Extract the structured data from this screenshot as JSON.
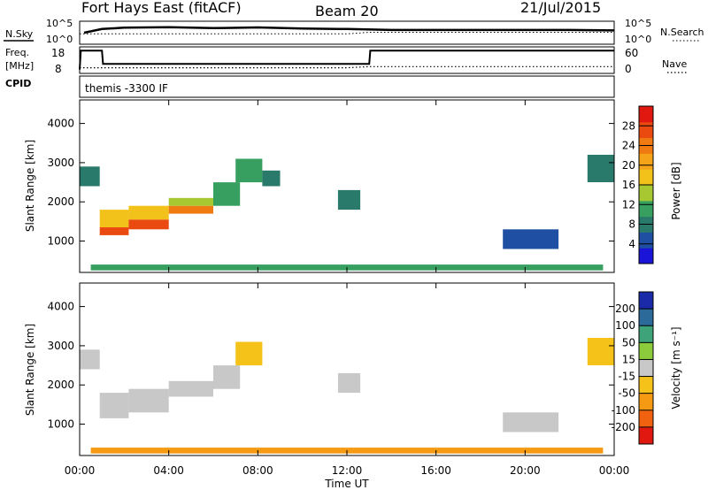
{
  "header": {
    "station": "Fort Hays East (fitACF)",
    "beam": "Beam 20",
    "date": "21/Jul/2015"
  },
  "noise_panel": {
    "left_label": "N.Sky",
    "left_ticks": [
      "10^5",
      "10^0"
    ],
    "right_label": "N.Search",
    "right_ticks": [
      "10^5",
      "10^0"
    ]
  },
  "freq_panel": {
    "left_label_1": "Freq.",
    "left_label_2": "[MHz]",
    "left_ticks": [
      "18",
      "8"
    ],
    "right_label": "Nave",
    "right_ticks": [
      "60",
      "0"
    ],
    "cpid_label": "CPID"
  },
  "cpid_text": "themis -3300 IF",
  "time_axis": {
    "label": "Time UT",
    "ticks": [
      "00:00",
      "04:00",
      "08:00",
      "12:00",
      "16:00",
      "20:00",
      "00:00"
    ]
  },
  "range_axis": {
    "label": "Slant Range [km]",
    "ticks": [
      "1000",
      "2000",
      "3000",
      "4000"
    ]
  },
  "power_colorbar": {
    "label": "Power [dB]",
    "ticks": [
      "4",
      "8",
      "12",
      "16",
      "20",
      "24",
      "28"
    ],
    "colors": [
      "#1a14d9",
      "#1f4fa3",
      "#2a7a6b",
      "#37a060",
      "#a8c832",
      "#f2c21a",
      "#f5a319",
      "#f07a12",
      "#ea4a0f",
      "#e01810"
    ]
  },
  "velocity_colorbar": {
    "label": "Velocity [m s⁻¹]",
    "ticks": [
      "200",
      "100",
      "50",
      "15",
      "-15",
      "-50",
      "-100",
      "-200"
    ],
    "colors": [
      "#1a2aa8",
      "#2c6a9a",
      "#3fa37a",
      "#8ccc3c",
      "#c8c8c8",
      "#f5c21a",
      "#f59a12",
      "#f0620f",
      "#e01810"
    ]
  },
  "chart_data": [
    {
      "type": "line",
      "title": "Noise",
      "x_unit": "hours UT",
      "xlim": [
        0,
        24
      ],
      "series": [
        {
          "name": "N.Sky",
          "x": [
            0.2,
            1,
            2,
            4,
            6,
            8,
            10,
            12,
            14,
            16,
            18,
            20,
            22,
            24
          ],
          "y": [
            0.5,
            0.66,
            0.72,
            0.74,
            0.7,
            0.73,
            0.68,
            0.66,
            0.62,
            0.62,
            0.62,
            0.62,
            0.62,
            0.6
          ]
        },
        {
          "name": "N.Search",
          "x": [
            0,
            4,
            8,
            12,
            13,
            16,
            20,
            24
          ],
          "y": [
            0.45,
            0.45,
            0.45,
            0.45,
            0.52,
            0.52,
            0.52,
            0.52
          ]
        }
      ]
    },
    {
      "type": "line",
      "title": "Frequency and Nave",
      "x_unit": "hours UT",
      "xlim": [
        0,
        24
      ],
      "series": [
        {
          "name": "Freq.",
          "x": [
            0,
            0.05,
            1,
            1.05,
            13,
            13.05,
            24
          ],
          "y": [
            8,
            18,
            18,
            11,
            11,
            18,
            18
          ]
        },
        {
          "name": "Nave",
          "x": [
            0,
            6,
            12,
            13,
            18,
            24
          ],
          "y": [
            15,
            15,
            15,
            18,
            18,
            18
          ]
        }
      ]
    },
    {
      "type": "heatmap",
      "title": "Power",
      "xlabel": "Time UT",
      "ylabel": "Slant Range [km]",
      "xlim": [
        0,
        24
      ],
      "ylim": [
        200,
        4600
      ],
      "clabel": "Power [dB]",
      "clim": [
        0,
        32
      ],
      "regions": [
        {
          "t0": 0.0,
          "t1": 0.9,
          "r_lo": 2400,
          "r_hi": 2900,
          "v": 8
        },
        {
          "t0": 0.9,
          "t1": 2.2,
          "r_lo": 1150,
          "r_hi": 1350,
          "v": 28
        },
        {
          "t0": 0.9,
          "t1": 2.2,
          "r_lo": 1350,
          "r_hi": 1800,
          "v": 18
        },
        {
          "t0": 2.2,
          "t1": 4.0,
          "r_lo": 1300,
          "r_hi": 1550,
          "v": 26
        },
        {
          "t0": 2.2,
          "t1": 4.0,
          "r_lo": 1550,
          "r_hi": 1900,
          "v": 16
        },
        {
          "t0": 4.0,
          "t1": 6.0,
          "r_lo": 1700,
          "r_hi": 1900,
          "v": 24
        },
        {
          "t0": 4.0,
          "t1": 6.0,
          "r_lo": 1900,
          "r_hi": 2100,
          "v": 14
        },
        {
          "t0": 6.0,
          "t1": 7.2,
          "r_lo": 1900,
          "r_hi": 2500,
          "v": 12
        },
        {
          "t0": 7.0,
          "t1": 8.2,
          "r_lo": 2500,
          "r_hi": 3100,
          "v": 10
        },
        {
          "t0": 8.2,
          "t1": 9.0,
          "r_lo": 2400,
          "r_hi": 2800,
          "v": 8
        },
        {
          "t0": 11.6,
          "t1": 12.6,
          "r_lo": 1800,
          "r_hi": 2300,
          "v": 7
        },
        {
          "t0": 19.0,
          "t1": 21.5,
          "r_lo": 800,
          "r_hi": 1300,
          "v": 6
        },
        {
          "t0": 22.8,
          "t1": 24.0,
          "r_lo": 2500,
          "r_hi": 3200,
          "v": 7
        },
        {
          "t0": 0.5,
          "t1": 23.5,
          "r_lo": 250,
          "r_hi": 400,
          "v": 12
        }
      ]
    },
    {
      "type": "heatmap",
      "title": "Velocity",
      "xlabel": "Time UT",
      "ylabel": "Slant Range [km]",
      "xlim": [
        0,
        24
      ],
      "ylim": [
        200,
        4600
      ],
      "clabel": "Velocity [m s⁻¹]",
      "clim": [
        -200,
        200
      ],
      "regions": [
        {
          "t0": 0.0,
          "t1": 0.9,
          "r_lo": 2400,
          "r_hi": 2900,
          "v": 0
        },
        {
          "t0": 0.9,
          "t1": 2.2,
          "r_lo": 1150,
          "r_hi": 1800,
          "v": 0
        },
        {
          "t0": 2.2,
          "t1": 4.0,
          "r_lo": 1300,
          "r_hi": 1900,
          "v": 0
        },
        {
          "t0": 4.0,
          "t1": 6.0,
          "r_lo": 1700,
          "r_hi": 2100,
          "v": 0
        },
        {
          "t0": 6.0,
          "t1": 7.2,
          "r_lo": 1900,
          "r_hi": 2500,
          "v": 0
        },
        {
          "t0": 7.0,
          "t1": 8.2,
          "r_lo": 2500,
          "r_hi": 3100,
          "v": -30
        },
        {
          "t0": 11.6,
          "t1": 12.6,
          "r_lo": 1800,
          "r_hi": 2300,
          "v": 0
        },
        {
          "t0": 19.0,
          "t1": 21.5,
          "r_lo": 800,
          "r_hi": 1300,
          "v": 0
        },
        {
          "t0": 22.8,
          "t1": 24.0,
          "r_lo": 2500,
          "r_hi": 3200,
          "v": -20
        },
        {
          "t0": 0.5,
          "t1": 23.5,
          "r_lo": 250,
          "r_hi": 400,
          "v": -40
        }
      ]
    }
  ]
}
